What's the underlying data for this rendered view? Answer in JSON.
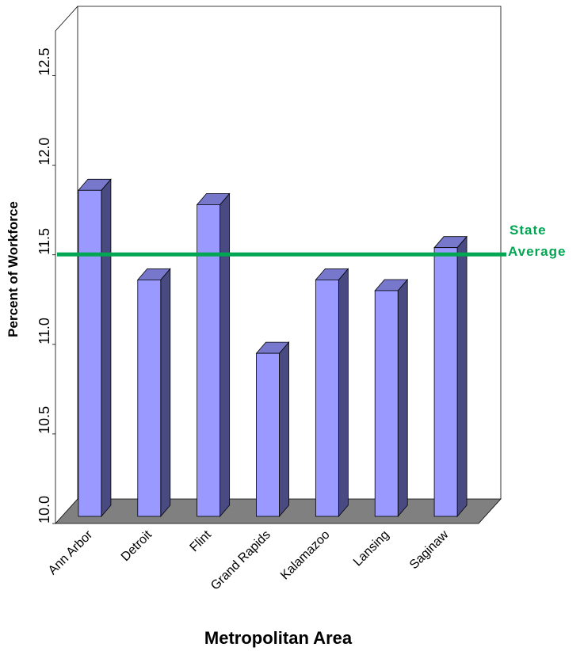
{
  "chart_data": {
    "type": "bar",
    "categories": [
      "Ann Arbor",
      "Detroit",
      "Flint",
      "Grand Rapids",
      "Kalamazoo",
      "Lansing",
      "Saginaw"
    ],
    "values": [
      11.86,
      11.36,
      11.78,
      10.95,
      11.36,
      11.3,
      11.54
    ],
    "ylim": [
      10.0,
      12.75
    ],
    "yticks": [
      "10.0",
      "10.5",
      "11.0",
      "11.5",
      "12.0",
      "12.5"
    ],
    "xlabel": "Metropolitan Area",
    "ylabel": "Percent of Workforce",
    "reference_line": {
      "value": 11.44,
      "label_line1": "State",
      "label_line2": "Average",
      "color": "#00a651"
    },
    "colors": {
      "bar_front": "#9999ff",
      "bar_side": "#4a4a82",
      "bar_top": "#7777cc",
      "floor": "#808080"
    },
    "grid": false,
    "style": "3d"
  }
}
